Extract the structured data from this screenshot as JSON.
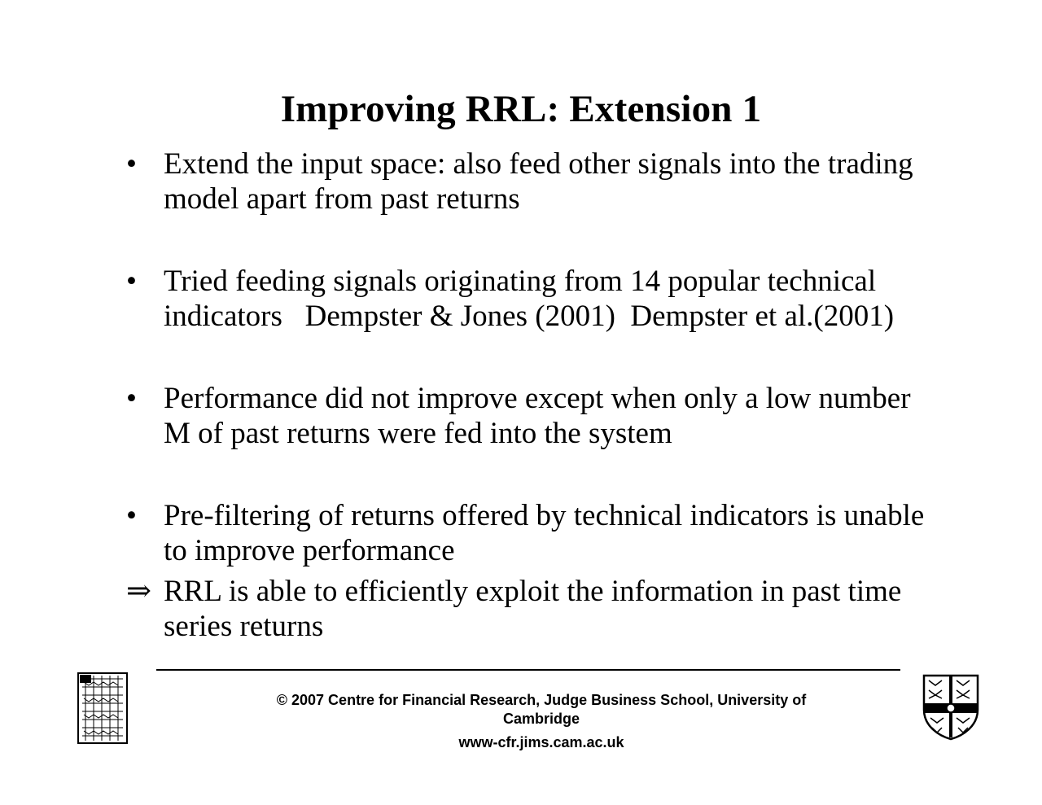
{
  "slide": {
    "title": "Improving RRL: Extension 1",
    "bullets": [
      {
        "marker": "•",
        "text": "Extend the input space: also feed other signals into the trading\nmodel apart from past returns"
      },
      {
        "marker": "•",
        "text": "Tried feeding signals originating from 14 popular technical\nindicators   Dempster & Jones (2001)  Dempster et al.(2001)"
      },
      {
        "marker": "•",
        "text": "Performance did not improve except when only a low number\nM of past returns were fed into the system"
      },
      {
        "marker": "•",
        "text": "Pre-filtering of returns offered by technical indicators is unable\nto improve performance"
      },
      {
        "marker": "⇒",
        "text": "RRL is able to efficiently exploit the information in past time\nseries returns"
      }
    ]
  },
  "footer": {
    "copyright": "© 2007 Centre for Financial Research,  Judge Business School,  University of Cambridge",
    "url": "www-cfr.jims.cam.ac.uk"
  },
  "logos": {
    "left": "cfr-logo-icon",
    "right": "university-crest-icon"
  }
}
